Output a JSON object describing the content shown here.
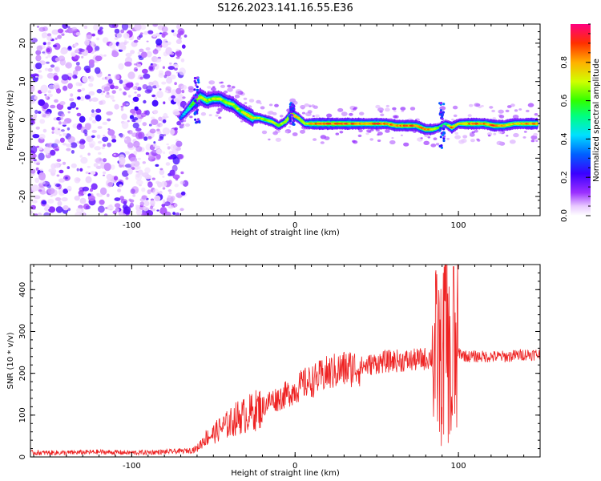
{
  "figure": {
    "title": "S126.2023.141.16.55.E36"
  },
  "colors": {
    "snr_line": "#ee2222",
    "axes": "#000000",
    "noise": "#8a2be2"
  },
  "chart_data": [
    {
      "type": "heatmap",
      "xlabel": "Height of straight line (km)",
      "ylabel": "Frequency (Hz)",
      "xlim": [
        -162,
        150
      ],
      "ylim": [
        -25,
        25
      ],
      "xticks": [
        -100,
        0,
        100
      ],
      "yticks": [
        -20,
        -10,
        0,
        10,
        20
      ],
      "colorbar": {
        "label": "Normalized spectral amplitude",
        "range": [
          0,
          1
        ],
        "ticks": [
          0.0,
          0.2,
          0.4,
          0.6,
          0.8
        ],
        "colormap": "rainbow (violet to red)"
      },
      "ridge": [
        [
          -70,
          0.5,
          0.35
        ],
        [
          -66,
          2.5,
          0.5
        ],
        [
          -62,
          4.5,
          0.65
        ],
        [
          -58,
          6.0,
          0.75
        ],
        [
          -54,
          5.0,
          0.7
        ],
        [
          -50,
          5.5,
          0.72
        ],
        [
          -46,
          5.5,
          0.7
        ],
        [
          -42,
          4.5,
          0.72
        ],
        [
          -38,
          4.0,
          0.7
        ],
        [
          -34,
          2.5,
          0.68
        ],
        [
          -30,
          1.5,
          0.75
        ],
        [
          -26,
          0.5,
          0.8
        ],
        [
          -22,
          0.5,
          0.72
        ],
        [
          -18,
          0.0,
          0.7
        ],
        [
          -14,
          -0.5,
          0.72
        ],
        [
          -10,
          -1.5,
          0.65
        ],
        [
          -6,
          -0.5,
          0.7
        ],
        [
          -2,
          1.5,
          0.85
        ],
        [
          2,
          0.5,
          0.78
        ],
        [
          6,
          -1.0,
          0.7
        ],
        [
          10,
          -1.0,
          0.85
        ],
        [
          14,
          -1.0,
          0.9
        ],
        [
          20,
          -1.0,
          0.92
        ],
        [
          26,
          -1.0,
          0.9
        ],
        [
          32,
          -1.0,
          0.92
        ],
        [
          38,
          -1.0,
          0.88
        ],
        [
          44,
          -1.0,
          0.85
        ],
        [
          50,
          -1.0,
          0.9
        ],
        [
          56,
          -1.0,
          0.85
        ],
        [
          62,
          -1.5,
          0.88
        ],
        [
          68,
          -1.5,
          0.9
        ],
        [
          74,
          -1.5,
          0.86
        ],
        [
          80,
          -2.5,
          0.85
        ],
        [
          84,
          -2.5,
          0.8
        ],
        [
          88,
          -2.0,
          0.6
        ],
        [
          92,
          -1.0,
          0.55
        ],
        [
          96,
          -2.0,
          0.85
        ],
        [
          100,
          -1.0,
          0.7
        ],
        [
          104,
          -1.0,
          0.85
        ],
        [
          110,
          -1.0,
          0.9
        ],
        [
          116,
          -1.0,
          0.85
        ],
        [
          122,
          -1.5,
          0.9
        ],
        [
          128,
          -1.5,
          0.82
        ],
        [
          134,
          -1.0,
          0.8
        ],
        [
          140,
          -1.0,
          0.84
        ],
        [
          146,
          -1.0,
          0.88
        ]
      ]
    },
    {
      "type": "line",
      "xlabel": "Height of straight line (km)",
      "ylabel": "SNR (10 * v/v)",
      "xlim": [
        -162,
        150
      ],
      "ylim": [
        0,
        460
      ],
      "xticks": [
        -100,
        0,
        100
      ],
      "yticks": [
        0,
        100,
        200,
        300,
        400
      ],
      "series": [
        {
          "x": [
            -162,
            -140,
            -120,
            -100,
            -80,
            -65,
            -60,
            -55,
            -50,
            -45,
            -40,
            -35,
            -30,
            -25,
            -20,
            -15,
            -10,
            -5,
            0,
            5,
            10,
            15,
            20,
            25,
            30,
            40,
            50,
            60,
            70,
            80,
            85,
            88,
            90,
            92,
            94,
            96,
            98,
            100,
            105,
            110,
            120,
            130,
            140,
            150
          ],
          "values": [
            10,
            10,
            12,
            10,
            12,
            15,
            20,
            45,
            55,
            70,
            80,
            95,
            100,
            110,
            120,
            135,
            140,
            150,
            160,
            175,
            180,
            190,
            200,
            205,
            210,
            215,
            225,
            230,
            230,
            235,
            240,
            245,
            200,
            330,
            250,
            120,
            230,
            250,
            240,
            240,
            240,
            240,
            245,
            245
          ]
        }
      ]
    }
  ]
}
